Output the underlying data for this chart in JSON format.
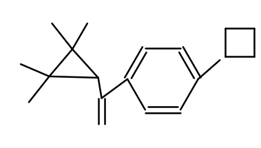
{
  "background": "#ffffff",
  "line_color": "#000000",
  "line_width": 1.8,
  "figsize": [
    3.79,
    2.15
  ],
  "dpi": 100
}
